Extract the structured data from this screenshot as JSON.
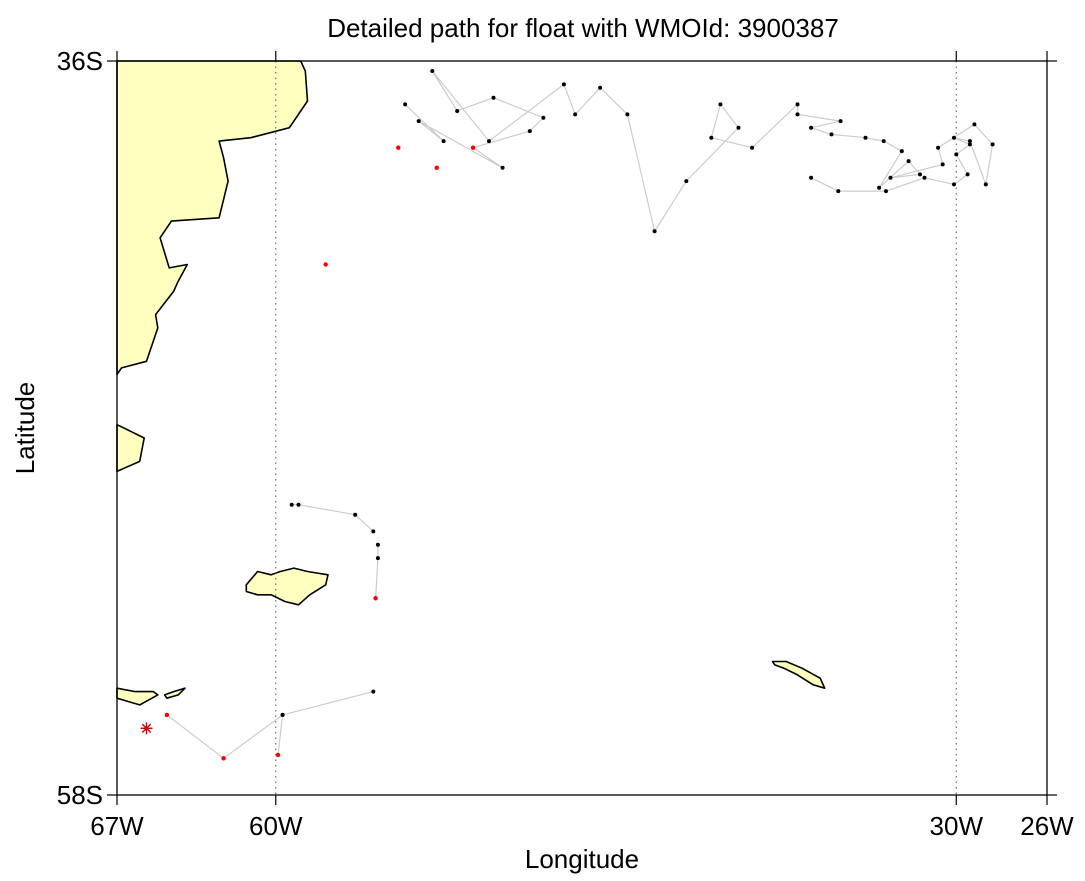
{
  "title": "Detailed path for float with WMOId: 3900387",
  "x_axis_label": "Longitude",
  "y_axis_label": "Latitude",
  "x_ticks": [
    {
      "label": "67W",
      "lon": -67
    },
    {
      "label": "60W",
      "lon": -60
    },
    {
      "label": "30W",
      "lon": -30
    },
    {
      "label": "26W",
      "lon": -26
    }
  ],
  "y_ticks": [
    {
      "label": "36S",
      "lat": -36
    },
    {
      "label": "58S",
      "lat": -58
    }
  ],
  "extent": {
    "lon_min": -67,
    "lon_max": -26,
    "lat_min": -58,
    "lat_max": -36
  },
  "colors": {
    "land": "#ffffc0",
    "coast": "#000000",
    "track": "#cccccc",
    "point": "#000000",
    "highlight_point": "#ff0000",
    "deploy_marker": "#cc0000"
  },
  "deploy_marker": {
    "lon": -65.7,
    "lat": -56.0,
    "symbol": "asterisk"
  },
  "tracks": [
    [
      [
        -64.8,
        -55.6
      ],
      [
        -62.3,
        -56.9
      ],
      [
        -59.7,
        -55.6
      ],
      [
        -55.7,
        -54.9
      ]
    ],
    [
      [
        -59.9,
        -56.8
      ],
      [
        -59.7,
        -55.6
      ]
    ],
    [
      [
        -59.3,
        -49.3
      ],
      [
        -59.0,
        -49.3
      ],
      [
        -56.5,
        -49.6
      ],
      [
        -55.7,
        -50.1
      ]
    ],
    [
      [
        -55.5,
        -50.5
      ],
      [
        -55.5,
        -50.9
      ],
      [
        -55.6,
        -52.1
      ]
    ],
    [
      [
        -54.3,
        -37.3
      ],
      [
        -52.6,
        -38.4
      ],
      [
        -53.7,
        -37.8
      ],
      [
        -50.0,
        -39.2
      ],
      [
        -51.3,
        -38.6
      ],
      [
        -48.8,
        -38.1
      ],
      [
        -48.2,
        -37.7
      ],
      [
        -50.4,
        -37.1
      ],
      [
        -52.0,
        -37.5
      ],
      [
        -53.1,
        -36.3
      ],
      [
        -50.6,
        -38.4
      ],
      [
        -47.3,
        -36.7
      ],
      [
        -46.8,
        -37.6
      ],
      [
        -45.7,
        -36.8
      ],
      [
        -44.5,
        -37.6
      ],
      [
        -43.3,
        -41.1
      ],
      [
        -41.9,
        -39.6
      ],
      [
        -39.6,
        -38.0
      ],
      [
        -40.4,
        -37.3
      ],
      [
        -40.8,
        -38.3
      ],
      [
        -39.0,
        -38.6
      ],
      [
        -37.0,
        -37.3
      ],
      [
        -37.0,
        -37.6
      ],
      [
        -35.1,
        -37.8
      ],
      [
        -36.4,
        -38.0
      ],
      [
        -35.5,
        -38.2
      ],
      [
        -34.0,
        -38.3
      ],
      [
        -33.2,
        -38.4
      ],
      [
        -32.4,
        -38.7
      ],
      [
        -33.4,
        -39.8
      ],
      [
        -32.1,
        -39.0
      ],
      [
        -31.6,
        -39.4
      ],
      [
        -32.9,
        -39.5
      ],
      [
        -30.6,
        -39.1
      ],
      [
        -30.8,
        -38.6
      ],
      [
        -29.2,
        -37.9
      ],
      [
        -28.4,
        -38.5
      ],
      [
        -28.7,
        -39.7
      ],
      [
        -29.4,
        -38.4
      ],
      [
        -30.1,
        -38.3
      ],
      [
        -29.4,
        -38.5
      ],
      [
        -30.0,
        -38.8
      ],
      [
        -29.5,
        -39.4
      ],
      [
        -30.1,
        -39.7
      ],
      [
        -31.4,
        -39.5
      ],
      [
        -33.1,
        -39.9
      ],
      [
        -35.2,
        -39.9
      ],
      [
        -36.4,
        -39.5
      ]
    ]
  ],
  "highlight_points": [
    [
      -64.8,
      -55.6
    ],
    [
      -62.3,
      -56.9
    ],
    [
      -59.9,
      -56.8
    ],
    [
      -55.6,
      -52.1
    ],
    [
      -57.8,
      -42.1
    ],
    [
      -54.6,
      -38.6
    ],
    [
      -52.9,
      -39.2
    ],
    [
      -51.3,
      -38.6
    ]
  ],
  "landmasses": [
    {
      "name": "south-america-coast",
      "polygon": [
        [
          -67,
          -36
        ],
        [
          -58.9,
          -36
        ],
        [
          -58.7,
          -36.3
        ],
        [
          -58.6,
          -37.2
        ],
        [
          -59.4,
          -38.0
        ],
        [
          -61.1,
          -38.3
        ],
        [
          -62.5,
          -38.4
        ],
        [
          -62.3,
          -38.9
        ],
        [
          -62.1,
          -39.6
        ],
        [
          -62.5,
          -40.7
        ],
        [
          -64.6,
          -40.8
        ],
        [
          -65.1,
          -41.3
        ],
        [
          -64.7,
          -42.2
        ],
        [
          -63.9,
          -42.1
        ],
        [
          -64.3,
          -42.6
        ],
        [
          -64.5,
          -42.9
        ],
        [
          -65.3,
          -43.6
        ],
        [
          -65.2,
          -44.0
        ],
        [
          -65.7,
          -45.0
        ],
        [
          -66.8,
          -45.2
        ],
        [
          -67,
          -45.4
        ]
      ]
    },
    {
      "name": "tierra-del-fuego-north",
      "polygon": [
        [
          -67,
          -46.9
        ],
        [
          -66.4,
          -47.1
        ],
        [
          -65.8,
          -47.3
        ],
        [
          -66.0,
          -48.0
        ],
        [
          -67,
          -48.3
        ]
      ]
    },
    {
      "name": "tierra-del-fuego-south",
      "polygon": [
        [
          -67,
          -54.8
        ],
        [
          -66.2,
          -54.9
        ],
        [
          -65.4,
          -54.9
        ],
        [
          -65.2,
          -55.0
        ],
        [
          -66.0,
          -55.3
        ],
        [
          -67,
          -55.1
        ]
      ]
    },
    {
      "name": "isla-de-los-estados",
      "polygon": [
        [
          -64.9,
          -55.0
        ],
        [
          -64.5,
          -54.9
        ],
        [
          -64.0,
          -54.8
        ],
        [
          -64.3,
          -55.0
        ],
        [
          -64.8,
          -55.1
        ]
      ]
    },
    {
      "name": "falkland-islands",
      "polygon": [
        [
          -61.3,
          -51.7
        ],
        [
          -60.8,
          -51.3
        ],
        [
          -60.2,
          -51.4
        ],
        [
          -59.8,
          -51.3
        ],
        [
          -59.2,
          -51.2
        ],
        [
          -58.6,
          -51.3
        ],
        [
          -57.7,
          -51.4
        ],
        [
          -57.8,
          -51.7
        ],
        [
          -58.5,
          -52.0
        ],
        [
          -59.0,
          -52.3
        ],
        [
          -59.6,
          -52.2
        ],
        [
          -60.2,
          -52.0
        ],
        [
          -60.8,
          -52.0
        ],
        [
          -61.3,
          -51.9
        ]
      ]
    },
    {
      "name": "south-georgia",
      "polygon": [
        [
          -38.1,
          -54.0
        ],
        [
          -37.5,
          -54.0
        ],
        [
          -36.8,
          -54.2
        ],
        [
          -36.0,
          -54.5
        ],
        [
          -35.8,
          -54.8
        ],
        [
          -36.3,
          -54.7
        ],
        [
          -37.0,
          -54.4
        ],
        [
          -37.6,
          -54.2
        ],
        [
          -38.0,
          -54.1
        ]
      ]
    }
  ]
}
